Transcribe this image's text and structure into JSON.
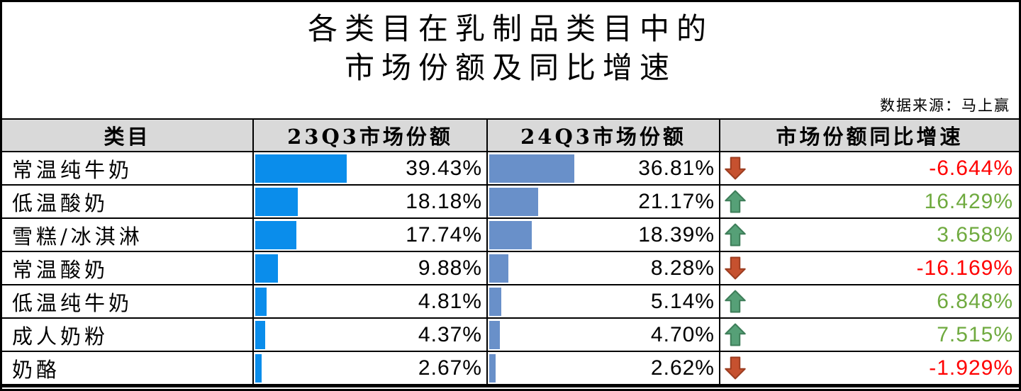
{
  "title": {
    "line1": "各类目在乳制品类目中的",
    "line2": "市场份额及同比增速"
  },
  "source": "数据来源：马上赢",
  "colors": {
    "header_bg": "#D9D9D9",
    "bar_23q3": "#0A8DEB",
    "bar_24q3": "#6990C9",
    "up_arrow_fill": "#56A077",
    "up_arrow_border": "#3E7E59",
    "down_arrow_fill": "#C6512F",
    "down_arrow_border": "#9C3D20",
    "growth_up_text": "#6FAA3F",
    "growth_down_text": "#FF0000"
  },
  "chart_data": {
    "type": "table",
    "title": "各类目在乳制品类目中的市场份额及同比增速",
    "source": "数据来源：马上赢",
    "columns": [
      "类目",
      "23Q3市场份额",
      "24Q3市场份额",
      "市场份额同比增速"
    ],
    "bar_scale": "percent of 0-100 cell width",
    "rows": [
      {
        "category": "常温纯牛奶",
        "share_23q3": "39.43%",
        "share_23q3_value": 39.43,
        "share_24q3": "36.81%",
        "share_24q3_value": 36.81,
        "yoy_growth": "-6.644%",
        "yoy_growth_value": -6.644,
        "trend": "down"
      },
      {
        "category": "低温酸奶",
        "share_23q3": "18.18%",
        "share_23q3_value": 18.18,
        "share_24q3": "21.17%",
        "share_24q3_value": 21.17,
        "yoy_growth": "16.429%",
        "yoy_growth_value": 16.429,
        "trend": "up"
      },
      {
        "category": "雪糕/冰淇淋",
        "share_23q3": "17.74%",
        "share_23q3_value": 17.74,
        "share_24q3": "18.39%",
        "share_24q3_value": 18.39,
        "yoy_growth": "3.658%",
        "yoy_growth_value": 3.658,
        "trend": "up"
      },
      {
        "category": "常温酸奶",
        "share_23q3": "9.88%",
        "share_23q3_value": 9.88,
        "share_24q3": "8.28%",
        "share_24q3_value": 8.28,
        "yoy_growth": "-16.169%",
        "yoy_growth_value": -16.169,
        "trend": "down"
      },
      {
        "category": "低温纯牛奶",
        "share_23q3": "4.81%",
        "share_23q3_value": 4.81,
        "share_24q3": "5.14%",
        "share_24q3_value": 5.14,
        "yoy_growth": "6.848%",
        "yoy_growth_value": 6.848,
        "trend": "up"
      },
      {
        "category": "成人奶粉",
        "share_23q3": "4.37%",
        "share_23q3_value": 4.37,
        "share_24q3": "4.70%",
        "share_24q3_value": 4.7,
        "yoy_growth": "7.515%",
        "yoy_growth_value": 7.515,
        "trend": "up"
      },
      {
        "category": "奶酪",
        "share_23q3": "2.67%",
        "share_23q3_value": 2.67,
        "share_24q3": "2.62%",
        "share_24q3_value": 2.62,
        "yoy_growth": "-1.929%",
        "yoy_growth_value": -1.929,
        "trend": "down"
      }
    ]
  }
}
